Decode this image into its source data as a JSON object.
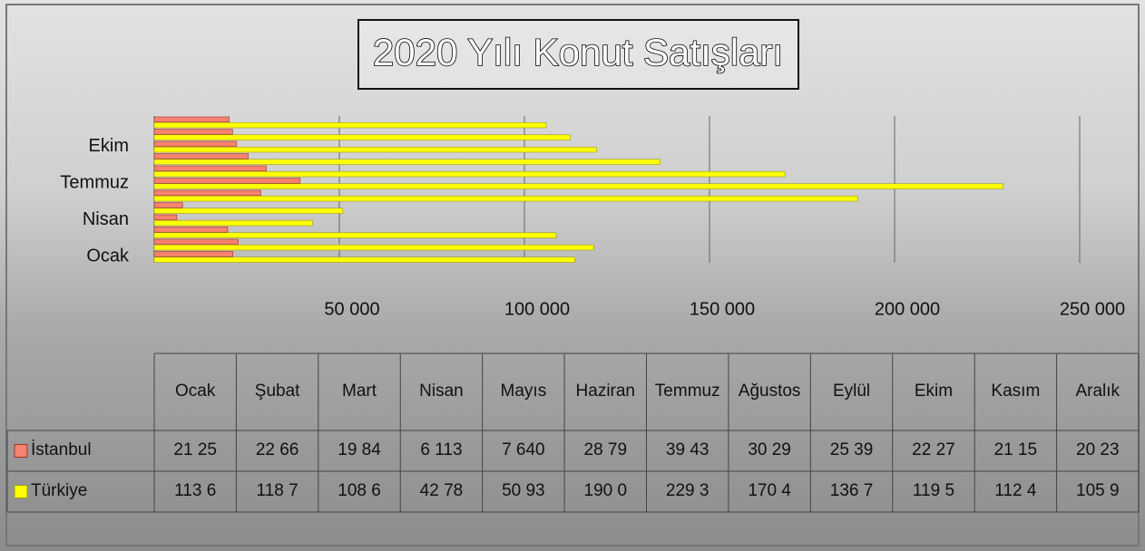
{
  "chart_data": {
    "type": "bar",
    "orientation": "horizontal",
    "title": "2020 Yılı Konut Satışları",
    "categories": [
      "Ocak",
      "Şubat",
      "Mart",
      "Nisan",
      "Mayıs",
      "Haziran",
      "Temmuz",
      "Ağustos",
      "Eylül",
      "Ekim",
      "Kasım",
      "Aralık"
    ],
    "series": [
      {
        "name": "İstanbul",
        "color": "#f4836f",
        "values": [
          21250,
          22660,
          19840,
          6113,
          7640,
          28790,
          39430,
          30290,
          25390,
          22270,
          21150,
          20230
        ],
        "value_labels": [
          "21 25",
          "22 66",
          "19 84",
          "6 113",
          "7 640",
          "28 79",
          "39 43",
          "30 29",
          "25 39",
          "22 27",
          "21 15",
          "20 23"
        ]
      },
      {
        "name": "Türkiye",
        "color": "#ffff00",
        "values": [
          113600,
          118700,
          108600,
          42780,
          50930,
          190000,
          229300,
          170400,
          136700,
          119500,
          112400,
          105900
        ],
        "value_labels": [
          "113 6",
          "118 7",
          "108 6",
          "42 78",
          "50 93",
          "190 0",
          "229 3",
          "170 4",
          "136 7",
          "119 5",
          "112 4",
          "105 9"
        ]
      }
    ],
    "xlim": [
      0,
      250000
    ],
    "xticks": [
      {
        "value": 50000,
        "label": "50 000"
      },
      {
        "value": 100000,
        "label": "100 000"
      },
      {
        "value": 150000,
        "label": "150 000"
      },
      {
        "value": 200000,
        "label": "200 000"
      },
      {
        "value": 250000,
        "label": "250 000"
      }
    ],
    "grid": true
  }
}
